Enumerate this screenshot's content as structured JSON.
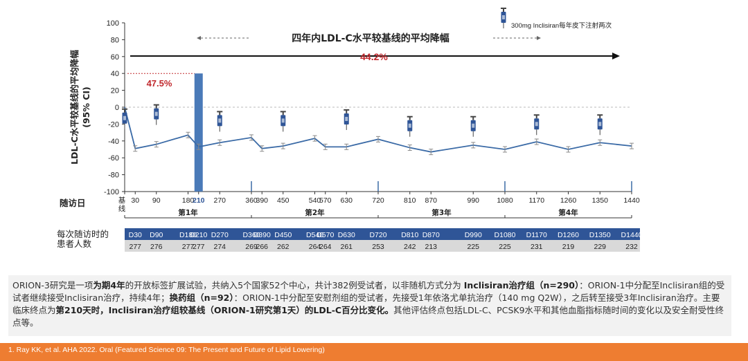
{
  "chart_data": {
    "type": "line",
    "title": "四年内LDL-C水平较基线的平均降幅",
    "ylabel": "LDL-C水平较基线的平均降幅 (95% CI)",
    "ylim": [
      -100,
      100
    ],
    "yticks": [
      100,
      80,
      60,
      40,
      20,
      0,
      -20,
      -40,
      -60,
      -80,
      -100
    ],
    "x_row_label": "随访日",
    "x_tick_labels": [
      "基线",
      "30",
      "90",
      "180",
      "210",
      "270",
      "360",
      "390",
      "450",
      "540",
      "570",
      "630",
      "720",
      "810",
      "870",
      "990",
      "1080",
      "1170",
      "1260",
      "1350",
      "1440"
    ],
    "highlight_x": 210,
    "years": [
      "第1年",
      "第2年",
      "第3年",
      "第4年"
    ],
    "series": [
      {
        "x": [
          0,
          30,
          90,
          180,
          210,
          270,
          360,
          390,
          450,
          540,
          570,
          630,
          720,
          810,
          870,
          990,
          1080,
          1170,
          1260,
          1350,
          1440
        ],
        "values": [
          0,
          -49,
          -44,
          -33,
          -47,
          -42,
          -36,
          -49,
          -46,
          -37,
          -47,
          -47,
          -38,
          -48,
          -53,
          -45,
          -50,
          -41,
          -50,
          -42,
          -46
        ]
      }
    ],
    "annotations": {
      "overall_reduction": "44.2%",
      "first_period_reduction": "47.5%",
      "injection_legend": "300mg Inclisiran每年皮下注射两次",
      "injection_days": [
        0,
        90,
        270,
        450,
        630,
        810,
        990,
        1170,
        1350
      ]
    }
  },
  "table": {
    "row_label": "每次随访时的患者人数",
    "visits": [
      "D30",
      "D90",
      "D180",
      "D210",
      "D270",
      "D360",
      "D390",
      "D450",
      "D540",
      "D570",
      "D630",
      "D720",
      "D810",
      "D870",
      "D990",
      "D1080",
      "D1170",
      "D1260",
      "D1350",
      "D1440"
    ],
    "counts": [
      "277",
      "276",
      "277",
      "277",
      "274",
      "269",
      "266",
      "262",
      "264",
      "264",
      "261",
      "253",
      "242",
      "213",
      "225",
      "225",
      "231",
      "219",
      "229",
      "232"
    ]
  },
  "note": {
    "p1": "ORION-3研究是一项",
    "b1": "为期4年",
    "p2": "的开放标签扩展试验，共纳入5个国家52个中心，共计382例受试者，以非随机方式分为 ",
    "b2": "Inclisiran治疗组（n=290）",
    "p3": "：ORION-1中分配至Inclisiran组的受试者继续接受Inclisiran治疗，持续4年；",
    "b3": "换药组（n=92）",
    "p4": "：ORION-1中分配至安慰剂组的受试者，先接受1年依洛尤单抗治疗（140 mg Q2W），之后转至接受3年Inclisiran治疗。主要临床终点为",
    "b4": "第210天时，Inclisiran治疗组较基线（ORION-1研究第1天）的LDL-C百分比变化。",
    "p5": "其他评估终点包括LDL-C、PCSK9水平和其他血脂指标随时间的变化以及安全耐受性终点等。"
  },
  "footer": {
    "text": "1.   Ray KK, et al. AHA 2022. Oral (Featured Science 09: The Present and Future of Lipid Lowering)"
  },
  "colors": {
    "line": "#3a6aa6",
    "highlight_bar": "#4a7ab8",
    "accent_red": "#c0282d",
    "table_header": "#2f5597",
    "table_counts_bg": "#d9d9d9",
    "footer": "#ee7d31"
  }
}
